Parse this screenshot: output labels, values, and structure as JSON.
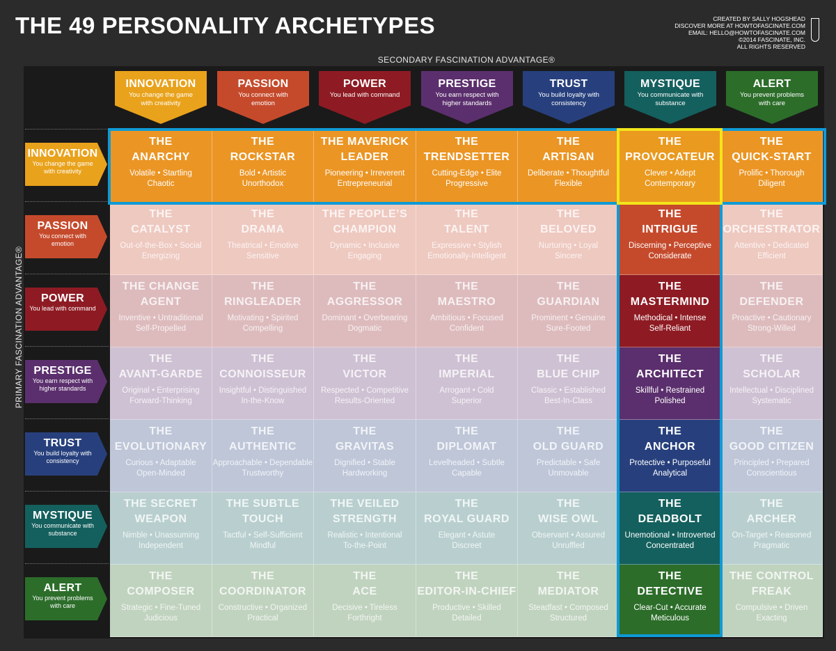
{
  "title": "THE 49 PERSONALITY ARCHETYPES",
  "credits": [
    "CREATED BY SALLY HOGSHEAD",
    "DISCOVER MORE AT HOWTOFASCINATE.COM",
    "EMAIL: HELLO@HOWTOFASCINATE.COM",
    "©2014 FASCINATE, INC.",
    "ALL RIGHTS RESERVED"
  ],
  "secondary_label": "SECONDARY FASCINATION ADVANTAGE®",
  "primary_label": "PRIMARY FASCINATION ADVANTAGE®",
  "advantages": [
    {
      "name": "INNOVATION",
      "desc": "You change the game with creativity",
      "color": "#e9a21b"
    },
    {
      "name": "PASSION",
      "desc": "You connect with emotion",
      "color": "#c54a2c"
    },
    {
      "name": "POWER",
      "desc": "You lead with command",
      "color": "#8e1b23"
    },
    {
      "name": "PRESTIGE",
      "desc": "You earn respect with higher standards",
      "color": "#5b2f6d"
    },
    {
      "name": "TRUST",
      "desc": "You build loyalty with consistency",
      "color": "#27407d"
    },
    {
      "name": "MYSTIQUE",
      "desc": "You communicate with substance",
      "color": "#14605e"
    },
    {
      "name": "ALERT",
      "desc": "You prevent problems with care",
      "color": "#2c6d2a"
    }
  ],
  "rows": [
    {
      "cells": [
        {
          "name": "THE ANARCHY",
          "traits": [
            "Volatile • Startling",
            "Chaotic"
          ]
        },
        {
          "name": "THE ROCKSTAR",
          "traits": [
            "Bold • Artistic",
            "Unorthodox"
          ]
        },
        {
          "name": "THE MAVERICK LEADER",
          "traits": [
            "Pioneering • Irreverent",
            "Entrepreneurial"
          ]
        },
        {
          "name": "THE TRENDSETTER",
          "traits": [
            "Cutting-Edge • Elite",
            "Progressive"
          ]
        },
        {
          "name": "THE ARTISAN",
          "traits": [
            "Deliberate • Thoughtful",
            "Flexible"
          ]
        },
        {
          "name": "THE PROVOCATEUR",
          "traits": [
            "Clever • Adept",
            "Contemporary"
          ]
        },
        {
          "name": "THE QUICK-START",
          "traits": [
            "Prolific • Thorough",
            "Diligent"
          ]
        }
      ]
    },
    {
      "cells": [
        {
          "name": "THE CATALYST",
          "traits": [
            "Out-of-the-Box • Social",
            "Energizing"
          ]
        },
        {
          "name": "THE DRAMA",
          "traits": [
            "Theatrical • Emotive",
            "Sensitive"
          ]
        },
        {
          "name": "THE PEOPLE'S CHAMPION",
          "traits": [
            "Dynamic • Inclusive",
            "Engaging"
          ]
        },
        {
          "name": "THE TALENT",
          "traits": [
            "Expressive • Stylish",
            "Emotionally-Intelligent"
          ]
        },
        {
          "name": "THE BELOVED",
          "traits": [
            "Nurturing • Loyal",
            "Sincere"
          ]
        },
        {
          "name": "THE INTRIGUE",
          "traits": [
            "Discerning • Perceptive",
            "Considerate"
          ]
        },
        {
          "name": "THE ORCHESTRATOR",
          "traits": [
            "Attentive • Dedicated",
            "Efficient"
          ]
        }
      ]
    },
    {
      "cells": [
        {
          "name": "THE CHANGE AGENT",
          "traits": [
            "Inventive • Untraditional",
            "Self-Propelled"
          ]
        },
        {
          "name": "THE RINGLEADER",
          "traits": [
            "Motivating • Spirited",
            "Compelling"
          ]
        },
        {
          "name": "THE AGGRESSOR",
          "traits": [
            "Dominant • Overbearing",
            "Dogmatic"
          ]
        },
        {
          "name": "THE MAESTRO",
          "traits": [
            "Ambitious • Focused",
            "Confident"
          ]
        },
        {
          "name": "THE GUARDIAN",
          "traits": [
            "Prominent • Genuine",
            "Sure-Footed"
          ]
        },
        {
          "name": "THE MASTERMIND",
          "traits": [
            "Methodical • Intense",
            "Self-Reliant"
          ]
        },
        {
          "name": "THE DEFENDER",
          "traits": [
            "Proactive • Cautionary",
            "Strong-Willed"
          ]
        }
      ]
    },
    {
      "cells": [
        {
          "name": "THE AVANT-GARDE",
          "traits": [
            "Original • Enterprising",
            "Forward-Thinking"
          ]
        },
        {
          "name": "THE CONNOISSEUR",
          "traits": [
            "Insightful • Distinguished",
            "In-the-Know"
          ]
        },
        {
          "name": "THE VICTOR",
          "traits": [
            "Respected • Competitive",
            "Results-Oriented"
          ]
        },
        {
          "name": "THE IMPERIAL",
          "traits": [
            "Arrogant • Cold",
            "Superior"
          ]
        },
        {
          "name": "THE BLUE CHIP",
          "traits": [
            "Classic • Established",
            "Best-In-Class"
          ]
        },
        {
          "name": "THE ARCHITECT",
          "traits": [
            "Skillful • Restrained",
            "Polished"
          ]
        },
        {
          "name": "THE SCHOLAR",
          "traits": [
            "Intellectual • Disciplined",
            "Systematic"
          ]
        }
      ]
    },
    {
      "cells": [
        {
          "name": "THE EVOLUTIONARY",
          "traits": [
            "Curious • Adaptable",
            "Open-Minded"
          ]
        },
        {
          "name": "THE AUTHENTIC",
          "traits": [
            "Approachable • Dependable",
            "Trustworthy"
          ]
        },
        {
          "name": "THE GRAVITAS",
          "traits": [
            "Dignified • Stable",
            "Hardworking"
          ]
        },
        {
          "name": "THE DIPLOMAT",
          "traits": [
            "Levelheaded • Subtle",
            "Capable"
          ]
        },
        {
          "name": "THE OLD GUARD",
          "traits": [
            "Predictable • Safe",
            "Unmovable"
          ]
        },
        {
          "name": "THE ANCHOR",
          "traits": [
            "Protective • Purposeful",
            "Analytical"
          ]
        },
        {
          "name": "THE GOOD CITIZEN",
          "traits": [
            "Principled • Prepared",
            "Conscientious"
          ]
        }
      ]
    },
    {
      "cells": [
        {
          "name": "THE SECRET WEAPON",
          "traits": [
            "Nimble • Unassuming",
            "Independent"
          ]
        },
        {
          "name": "THE SUBTLE TOUCH",
          "traits": [
            "Tactful • Self-Sufficient",
            "Mindful"
          ]
        },
        {
          "name": "THE VEILED STRENGTH",
          "traits": [
            "Realistic • Intentional",
            "To-the-Point"
          ]
        },
        {
          "name": "THE ROYAL GUARD",
          "traits": [
            "Elegant • Astute",
            "Discreet"
          ]
        },
        {
          "name": "THE WISE OWL",
          "traits": [
            "Observant • Assured",
            "Unruffled"
          ]
        },
        {
          "name": "THE DEADBOLT",
          "traits": [
            "Unemotional • Introverted",
            "Concentrated"
          ]
        },
        {
          "name": "THE ARCHER",
          "traits": [
            "On-Target • Reasoned",
            "Pragmatic"
          ]
        }
      ]
    },
    {
      "cells": [
        {
          "name": "THE COMPOSER",
          "traits": [
            "Strategic • Fine-Tuned",
            "Judicious"
          ]
        },
        {
          "name": "THE COORDINATOR",
          "traits": [
            "Constructive • Organized",
            "Practical"
          ]
        },
        {
          "name": "THE ACE",
          "traits": [
            "Decisive • Tireless",
            "Forthright"
          ]
        },
        {
          "name": "THE EDITOR-IN-CHIEF",
          "traits": [
            "Productive • Skilled",
            "Detailed"
          ]
        },
        {
          "name": "THE MEDIATOR",
          "traits": [
            "Steadfast • Composed",
            "Structured"
          ]
        },
        {
          "name": "THE DETECTIVE",
          "traits": [
            "Clear-Cut • Accurate",
            "Meticulous"
          ]
        },
        {
          "name": "THE CONTROL FREAK",
          "traits": [
            "Compulsive • Driven",
            "Exacting"
          ]
        }
      ]
    }
  ],
  "highlight": {
    "row_color": "#0f9ad6",
    "cell_color": "#f3e51a"
  }
}
